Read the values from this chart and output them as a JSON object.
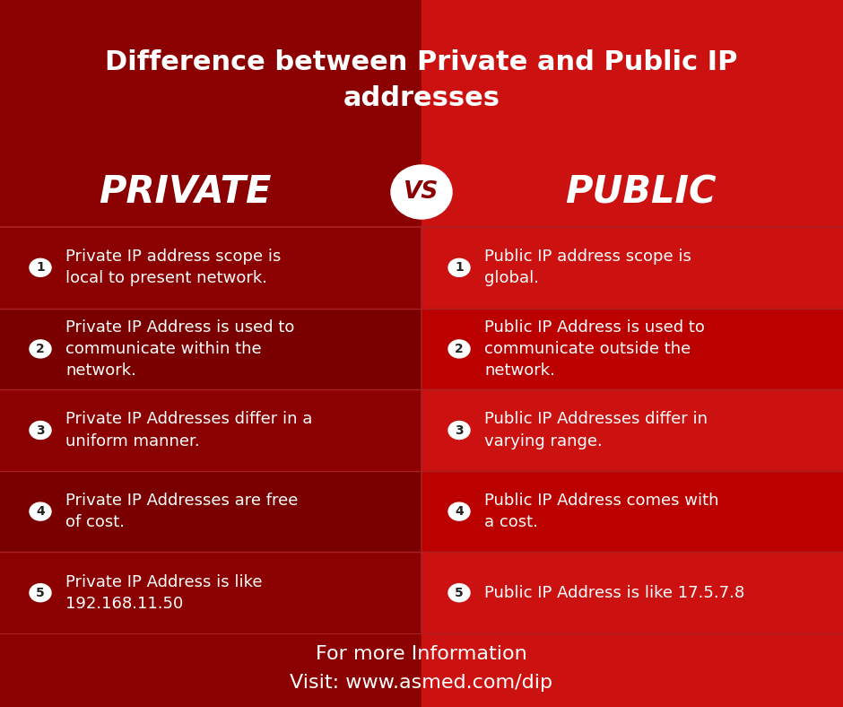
{
  "title_line1": "Difference between Private and Public IP",
  "title_line2": "addresses",
  "left_label": "PRIVATE",
  "right_label": "PUBLIC",
  "vs_label": "VS",
  "bg_left_color": "#8B0000",
  "bg_right_color": "#CC1111",
  "row_colors_left": [
    "#8B0000",
    "#7A0000",
    "#8B0000",
    "#7A0000",
    "#8B0000"
  ],
  "row_colors_right": [
    "#CC1111",
    "#BB0000",
    "#CC1111",
    "#BB0000",
    "#CC1111"
  ],
  "private_points": [
    "Private IP address scope is\nlocal to present network.",
    "Private IP Address is used to\ncommunicate within the\nnetwork.",
    "Private IP Addresses differ in a\nuniform manner.",
    "Private IP Addresses are free\nof cost.",
    "Private IP Address is like\n192.168.11.50"
  ],
  "public_points": [
    "Public IP address scope is\nglobal.",
    "Public IP Address is used to\ncommunicate outside the\nnetwork.",
    "Public IP Addresses differ in\nvarying range.",
    "Public IP Address comes with\na cost.",
    "Public IP Address is like 17.5.7.8"
  ],
  "footer_line1": "For more Information",
  "footer_line2": "Visit: www.asmed.com/dip",
  "white": "#FFFFFF",
  "vs_circle_color": "#FFFFFF",
  "vs_text_color": "#8B0000",
  "separator_color": "#AA2222",
  "title_fontsize": 22,
  "header_fontsize": 30,
  "body_fontsize": 13,
  "footer_fontsize": 16,
  "badge_number_color": "#222222",
  "figw": 9.4,
  "figh": 7.88,
  "dpi": 100
}
